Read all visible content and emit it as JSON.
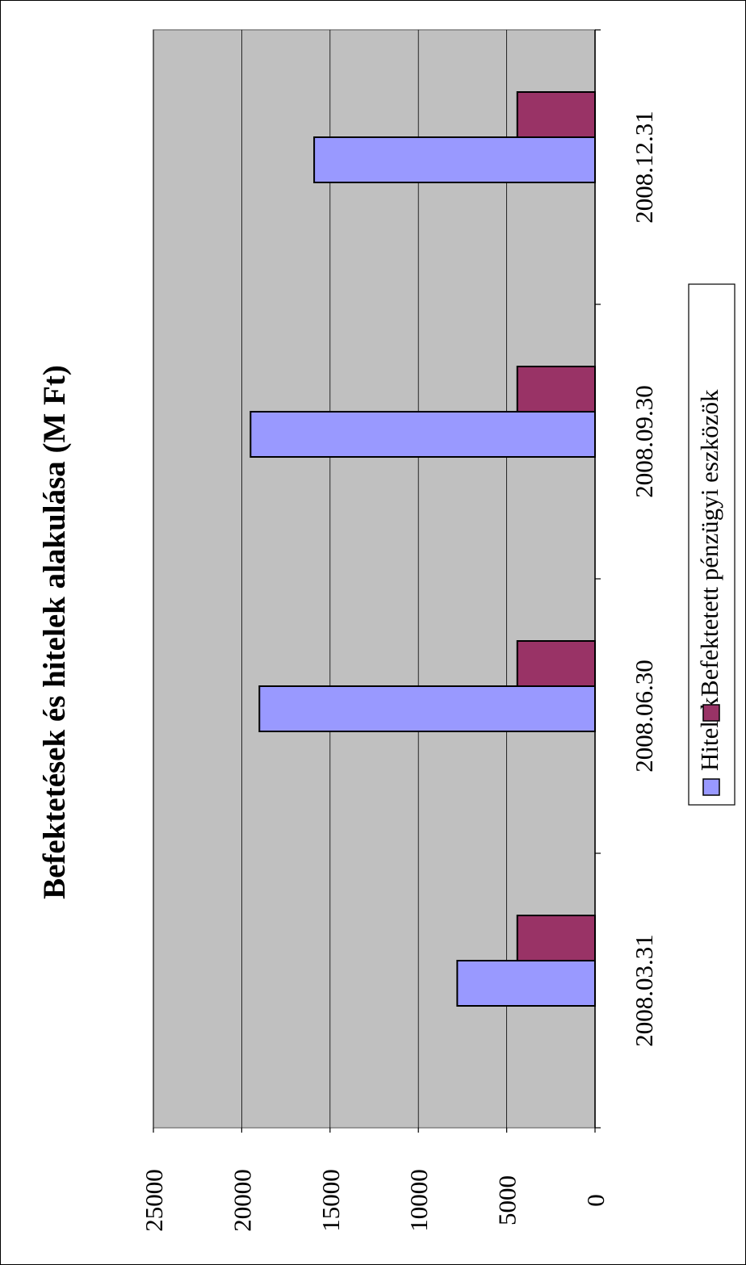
{
  "chart_data": {
    "type": "bar",
    "orientation": "rotated-90",
    "title": "Befektetések és hitelek alakulása  (M Ft)",
    "categories": [
      "2008.03.31",
      "2008.06.30",
      "2008.09.30",
      "2008.12.31"
    ],
    "series": [
      {
        "name": "Hitelek",
        "values": [
          7800,
          19000,
          19500,
          15900
        ],
        "color": "#9999ff"
      },
      {
        "name": "Befektetett pénzügyi eszközök",
        "values": [
          4400,
          4400,
          4400,
          4400
        ],
        "color": "#993366"
      }
    ],
    "ylim": [
      0,
      25000
    ],
    "yticks": [
      "0",
      "5000",
      "10000",
      "15000",
      "20000",
      "25000"
    ],
    "grid": true,
    "plot_background": "#c0c0c0",
    "legend_position": "right"
  }
}
